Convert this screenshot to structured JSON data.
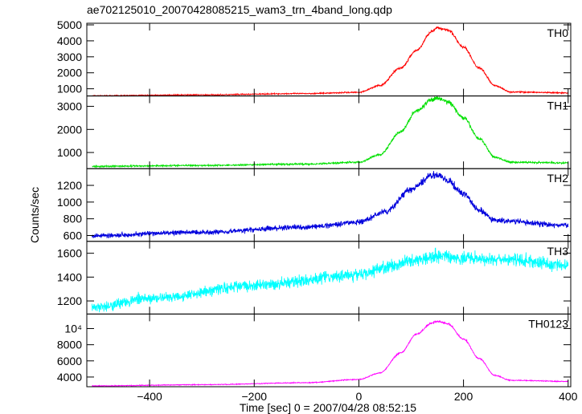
{
  "title": "ae702125010_20070428085215_wam3_trn_4band_long.qdp",
  "ylabel": "Counts/sec",
  "xlabel": "Time [sec] 0 = 2007/04/28 08:52:15",
  "chart_data": {
    "type": "line",
    "x_axis": {
      "ticks": [
        -400,
        -200,
        0,
        200,
        400
      ],
      "labels": [
        "−400",
        "−200",
        "0",
        "200",
        "400"
      ],
      "range": [
        -520,
        405
      ]
    },
    "panels": [
      {
        "name": "TH0",
        "color": "#ff0000",
        "ylim": [
          550,
          5100
        ],
        "yticks": [
          1000,
          2000,
          3000,
          4000,
          5000
        ],
        "ytick_labels": [
          "1000",
          "2000",
          "3000",
          "4000",
          "5000"
        ],
        "noise": 40,
        "points": [
          [
            -510,
            560
          ],
          [
            -300,
            620
          ],
          [
            -100,
            700
          ],
          [
            0,
            780
          ],
          [
            40,
            1200
          ],
          [
            80,
            2300
          ],
          [
            110,
            3400
          ],
          [
            140,
            4600
          ],
          [
            150,
            4800
          ],
          [
            170,
            4700
          ],
          [
            200,
            3600
          ],
          [
            230,
            2300
          ],
          [
            260,
            1200
          ],
          [
            290,
            800
          ],
          [
            400,
            740
          ]
        ]
      },
      {
        "name": "TH1",
        "color": "#00e000",
        "ylim": [
          300,
          3450
        ],
        "yticks": [
          1000,
          2000,
          3000
        ],
        "ytick_labels": [
          "1000",
          "2000",
          "3000"
        ],
        "noise": 40,
        "points": [
          [
            -510,
            400
          ],
          [
            -300,
            440
          ],
          [
            -100,
            500
          ],
          [
            0,
            580
          ],
          [
            40,
            900
          ],
          [
            80,
            1900
          ],
          [
            110,
            2800
          ],
          [
            140,
            3300
          ],
          [
            150,
            3350
          ],
          [
            170,
            3200
          ],
          [
            200,
            2500
          ],
          [
            230,
            1600
          ],
          [
            260,
            800
          ],
          [
            290,
            580
          ],
          [
            400,
            550
          ]
        ]
      },
      {
        "name": "TH2",
        "color": "#0000dd",
        "ylim": [
          530,
          1400
        ],
        "yticks": [
          600,
          800,
          1000,
          1200
        ],
        "ytick_labels": [
          "600",
          "800",
          "1000",
          "1200"
        ],
        "noise": 35,
        "points": [
          [
            -510,
            600
          ],
          [
            -300,
            640
          ],
          [
            -100,
            700
          ],
          [
            0,
            760
          ],
          [
            50,
            880
          ],
          [
            100,
            1150
          ],
          [
            140,
            1320
          ],
          [
            150,
            1330
          ],
          [
            170,
            1250
          ],
          [
            200,
            1100
          ],
          [
            230,
            900
          ],
          [
            260,
            780
          ],
          [
            400,
            720
          ]
        ]
      },
      {
        "name": "TH3",
        "color": "#00ffff",
        "ylim": [
          1090,
          1700
        ],
        "yticks": [
          1200,
          1400,
          1600
        ],
        "ytick_labels": [
          "1200",
          "1400",
          "1600"
        ],
        "noise": 55,
        "points": [
          [
            -510,
            1150
          ],
          [
            -400,
            1220
          ],
          [
            -200,
            1330
          ],
          [
            0,
            1420
          ],
          [
            50,
            1480
          ],
          [
            100,
            1540
          ],
          [
            150,
            1580
          ],
          [
            200,
            1560
          ],
          [
            300,
            1540
          ],
          [
            400,
            1500
          ]
        ]
      },
      {
        "name": "TH0123",
        "color": "#ff00ff",
        "ylim": [
          2800,
          11800
        ],
        "yticks": [
          4000,
          6000,
          8000,
          10000
        ],
        "ytick_labels": [
          "4000",
          "6000",
          "8000",
          "10⁴"
        ],
        "noise": 60,
        "points": [
          [
            -510,
            2900
          ],
          [
            -300,
            3050
          ],
          [
            -100,
            3300
          ],
          [
            0,
            3700
          ],
          [
            40,
            4500
          ],
          [
            80,
            7000
          ],
          [
            110,
            9300
          ],
          [
            140,
            10700
          ],
          [
            150,
            10900
          ],
          [
            170,
            10600
          ],
          [
            200,
            8700
          ],
          [
            230,
            6300
          ],
          [
            260,
            4200
          ],
          [
            290,
            3600
          ],
          [
            400,
            3450
          ]
        ]
      }
    ]
  }
}
